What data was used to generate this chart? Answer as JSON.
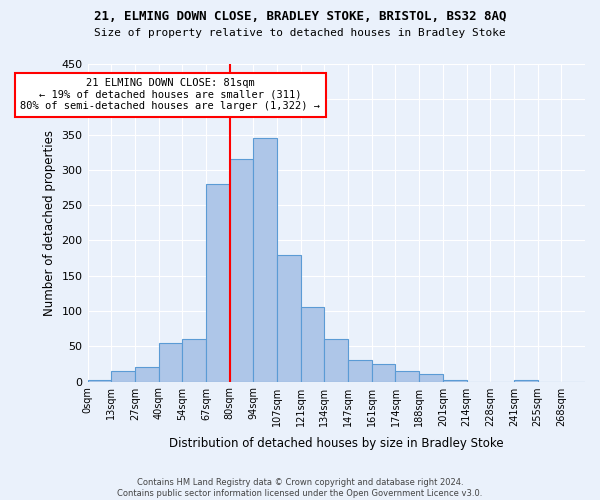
{
  "title": "21, ELMING DOWN CLOSE, BRADLEY STOKE, BRISTOL, BS32 8AQ",
  "subtitle": "Size of property relative to detached houses in Bradley Stoke",
  "xlabel": "Distribution of detached houses by size in Bradley Stoke",
  "ylabel": "Number of detached properties",
  "footer": "Contains HM Land Registry data © Crown copyright and database right 2024.\nContains public sector information licensed under the Open Government Licence v3.0.",
  "bar_color": "#aec6e8",
  "bar_edge_color": "#5b9bd5",
  "bin_labels": [
    "0sqm",
    "13sqm",
    "27sqm",
    "40sqm",
    "54sqm",
    "67sqm",
    "80sqm",
    "94sqm",
    "107sqm",
    "121sqm",
    "134sqm",
    "147sqm",
    "161sqm",
    "174sqm",
    "188sqm",
    "201sqm",
    "214sqm",
    "228sqm",
    "241sqm",
    "255sqm",
    "268sqm"
  ],
  "bar_heights": [
    2,
    15,
    20,
    55,
    60,
    280,
    315,
    345,
    180,
    105,
    60,
    30,
    25,
    15,
    10,
    2,
    0,
    0,
    2,
    0,
    0
  ],
  "vline_x": 6,
  "annotation_text": "21 ELMING DOWN CLOSE: 81sqm\n← 19% of detached houses are smaller (311)\n80% of semi-detached houses are larger (1,322) →",
  "annotation_box_color": "white",
  "annotation_box_edge_color": "red",
  "vline_color": "red",
  "ylim": [
    0,
    450
  ],
  "yticks": [
    0,
    50,
    100,
    150,
    200,
    250,
    300,
    350,
    400,
    450
  ],
  "bg_color": "#eaf1fb",
  "plot_bg_color": "#eaf1fb"
}
